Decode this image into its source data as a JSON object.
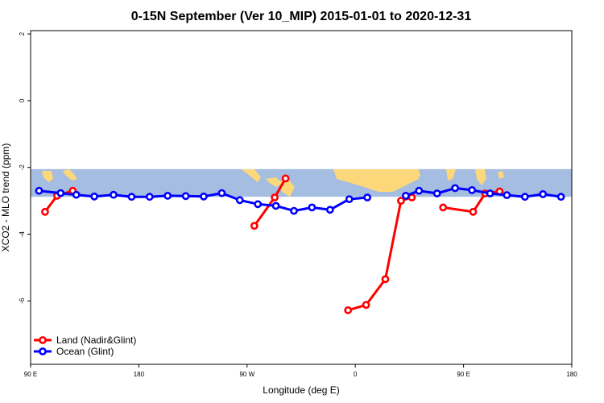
{
  "chart_data": {
    "type": "line",
    "title": "0-15N September (Ver 10_MIP)   2015-01-01 to 2020-12-31",
    "xlabel": "Longitude (deg E)",
    "ylabel": "XCO2 - MLO trend (ppm)",
    "xlim": [
      90,
      540
    ],
    "ylim": [
      -7.9,
      2.1
    ],
    "x_ticks": [
      {
        "value": 90,
        "label": "90 E"
      },
      {
        "value": 180,
        "label": "180"
      },
      {
        "value": 270,
        "label": "90 W"
      },
      {
        "value": 360,
        "label": "0"
      },
      {
        "value": 450,
        "label": "90 E"
      },
      {
        "value": 540,
        "label": "180"
      }
    ],
    "y_ticks": [
      {
        "value": 2,
        "label": "2"
      },
      {
        "value": 0,
        "label": "0"
      },
      {
        "value": -2,
        "label": "-2"
      },
      {
        "value": -4,
        "label": "-4"
      },
      {
        "value": -6,
        "label": "-6"
      }
    ],
    "map_band": {
      "y_top": -2.05,
      "y_bottom": -2.88,
      "ocean_color": "#a5bde0",
      "land_color": "#fcd87a"
    },
    "series": [
      {
        "name": "Land (Nadir&Glint)",
        "color": "#ff0000",
        "segments": [
          [
            [
              102,
              -3.33
            ],
            [
              112,
              -2.85
            ],
            [
              125,
              -2.7
            ]
          ],
          [
            [
              276,
              -3.75
            ],
            [
              293,
              -2.9
            ],
            [
              302,
              -2.33
            ]
          ],
          [
            [
              354,
              -6.28
            ],
            [
              369,
              -6.12
            ],
            [
              385,
              -5.35
            ],
            [
              398,
              -3.0
            ],
            [
              407,
              -2.9
            ]
          ],
          [
            [
              433,
              -3.2
            ],
            [
              458,
              -3.33
            ],
            [
              468,
              -2.78
            ],
            [
              480,
              -2.72
            ]
          ]
        ]
      },
      {
        "name": "Ocean (Glint)",
        "color": "#0000ff",
        "segments": [
          [
            [
              97,
              -2.7
            ],
            [
              115,
              -2.77
            ],
            [
              128,
              -2.82
            ],
            [
              143,
              -2.87
            ],
            [
              159,
              -2.82
            ],
            [
              174,
              -2.88
            ],
            [
              189,
              -2.88
            ],
            [
              204,
              -2.85
            ],
            [
              219,
              -2.86
            ],
            [
              234,
              -2.87
            ],
            [
              249,
              -2.77
            ],
            [
              264,
              -2.98
            ],
            [
              279,
              -3.1
            ],
            [
              294,
              -3.15
            ],
            [
              309,
              -3.3
            ],
            [
              324,
              -3.2
            ],
            [
              339,
              -3.27
            ],
            [
              355,
              -2.95
            ],
            [
              370,
              -2.9
            ]
          ],
          [
            [
              402,
              -2.85
            ],
            [
              413,
              -2.7
            ],
            [
              428,
              -2.78
            ],
            [
              443,
              -2.62
            ],
            [
              457,
              -2.68
            ],
            [
              472,
              -2.78
            ],
            [
              486,
              -2.83
            ],
            [
              501,
              -2.88
            ],
            [
              516,
              -2.8
            ],
            [
              531,
              -2.88
            ]
          ]
        ]
      }
    ],
    "legend": {
      "position": "bottom-left"
    }
  }
}
